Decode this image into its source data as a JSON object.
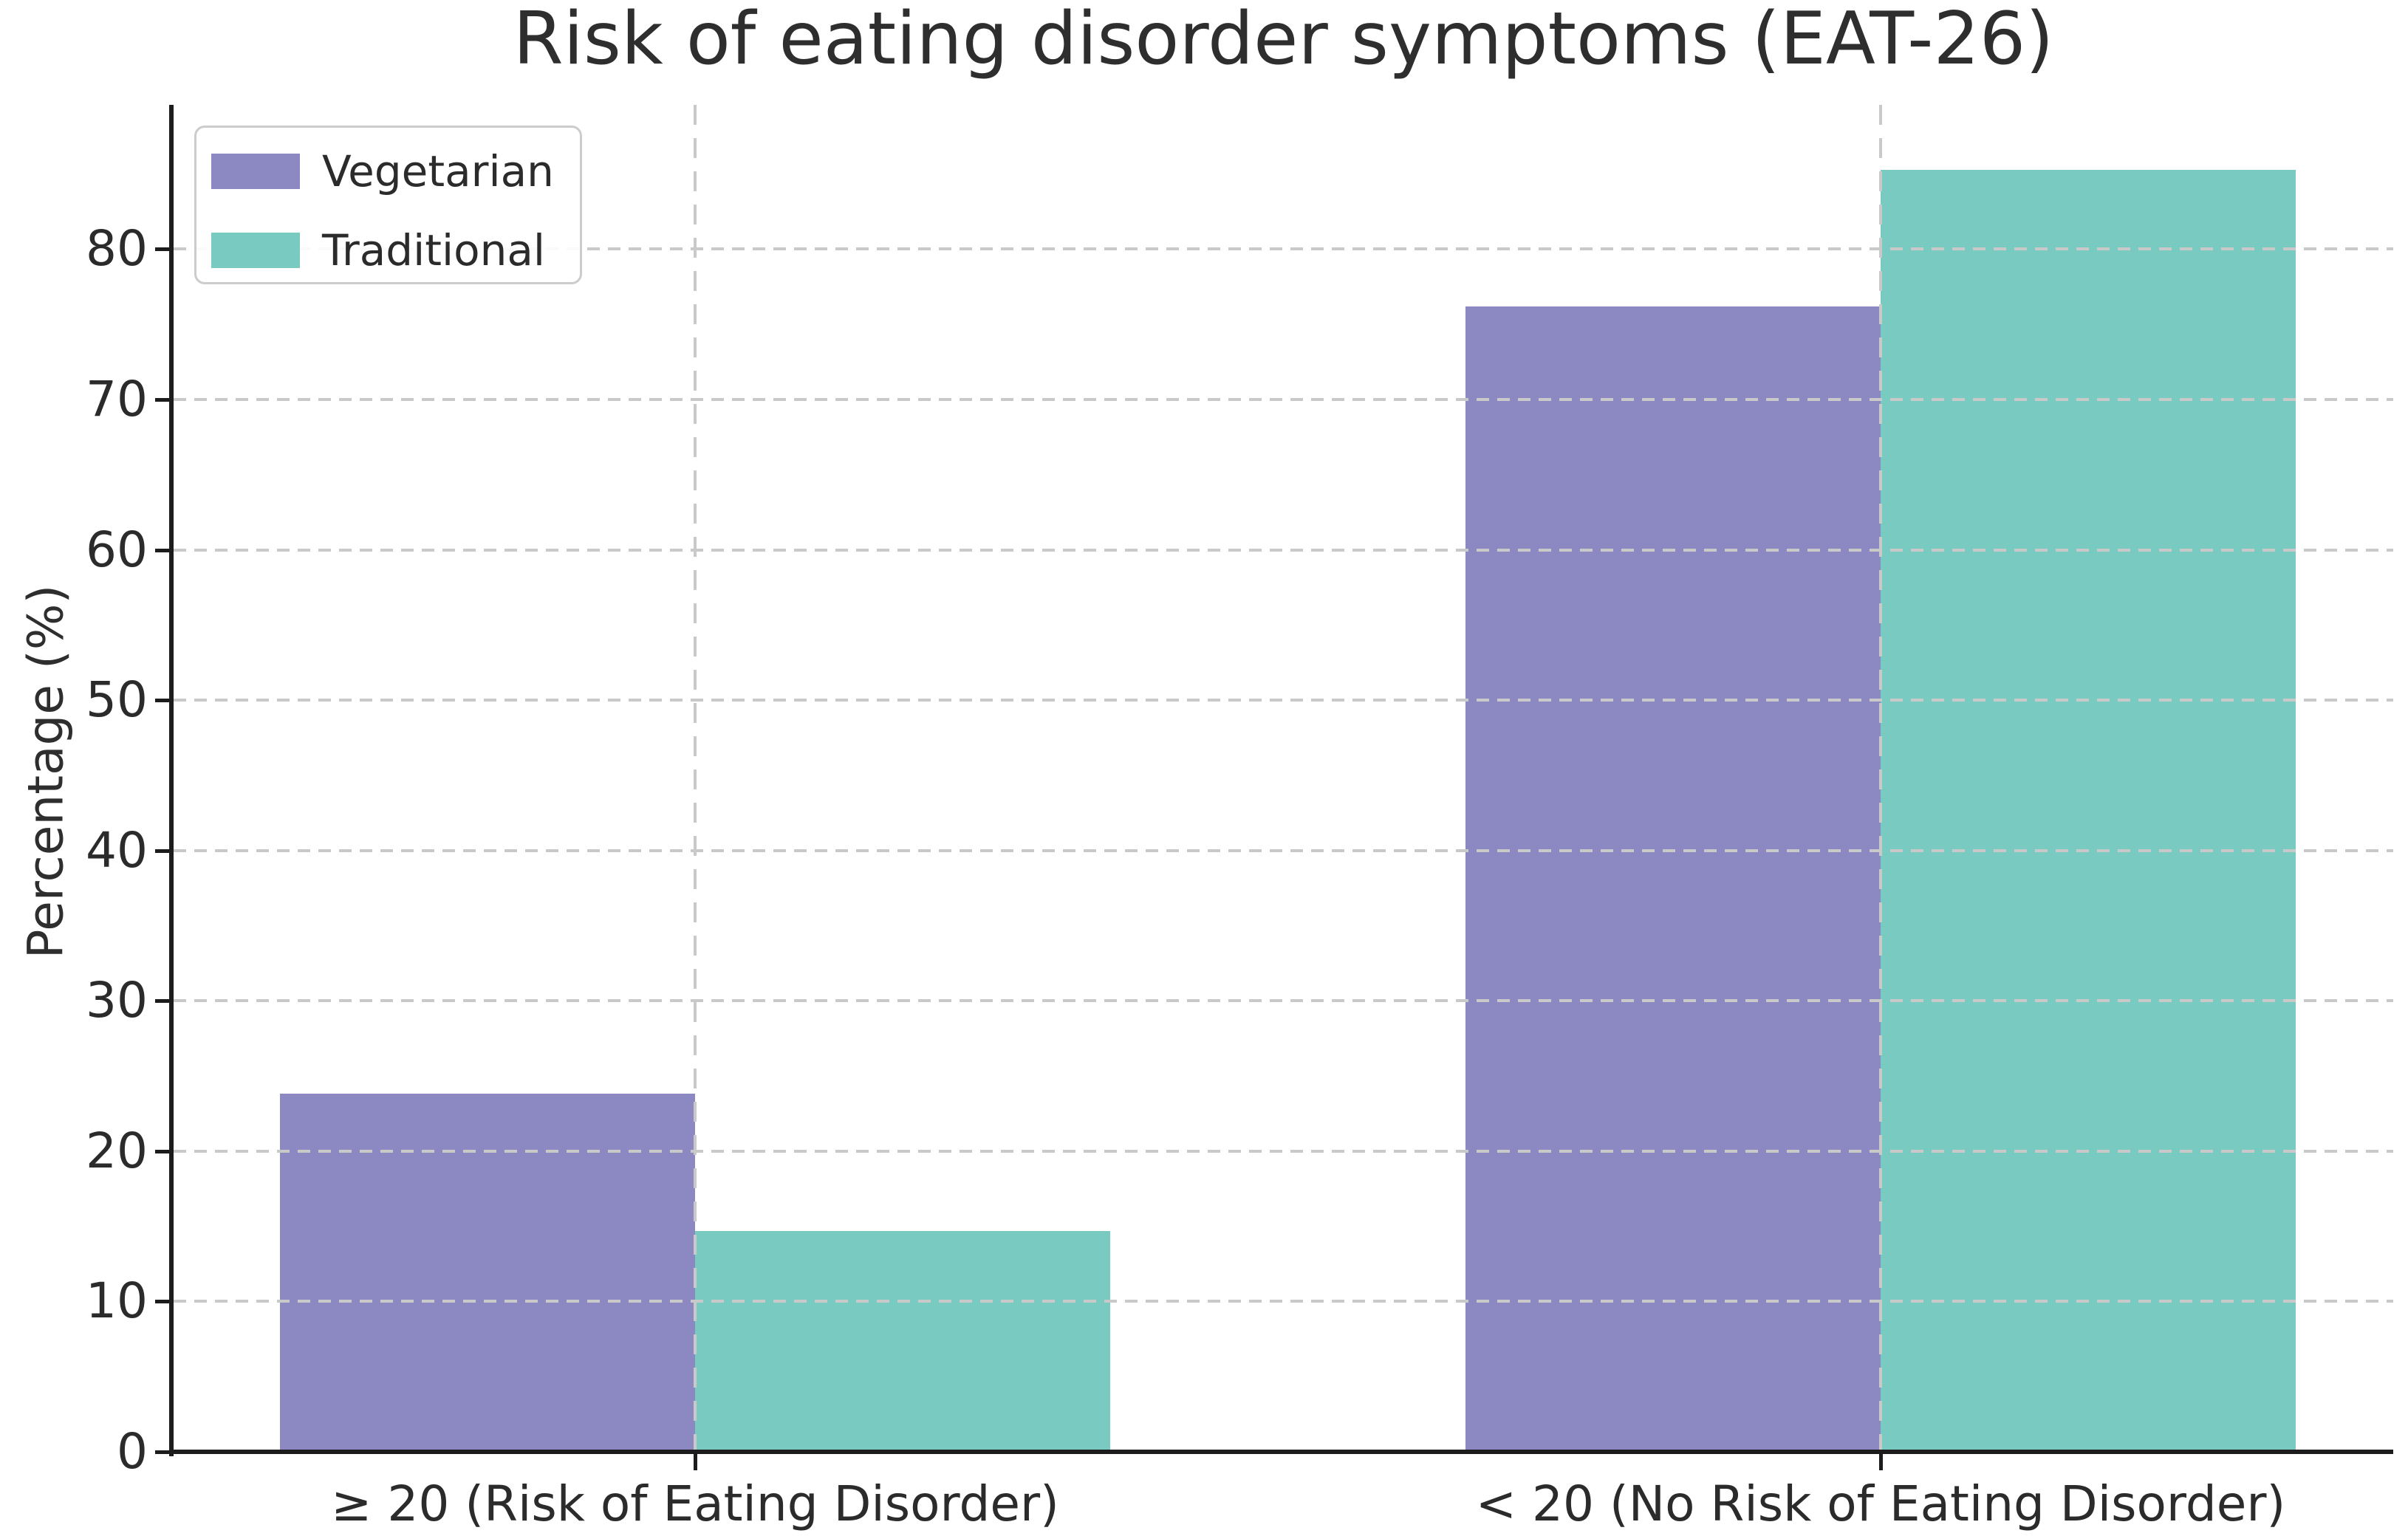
{
  "chart_data": {
    "type": "bar",
    "title": "Risk of eating disorder symptoms (EAT-26)",
    "ylabel": "Percentage (%)",
    "xlabel": "",
    "categories": [
      "≥ 20 (Risk of Eating Disorder)",
      "< 20 (No Risk of Eating Disorder)"
    ],
    "series": [
      {
        "name": "Vegetarian",
        "color": "#8c88c2",
        "values": [
          23.8,
          76.2
        ]
      },
      {
        "name": "Traditional",
        "color": "#79cbc1",
        "values": [
          14.7,
          85.3
        ]
      }
    ],
    "yticks": [
      0,
      10,
      20,
      30,
      40,
      50,
      60,
      70,
      80
    ],
    "ylim": [
      0,
      89.6
    ],
    "grid": "dashed",
    "legend_position": "upper-left"
  }
}
